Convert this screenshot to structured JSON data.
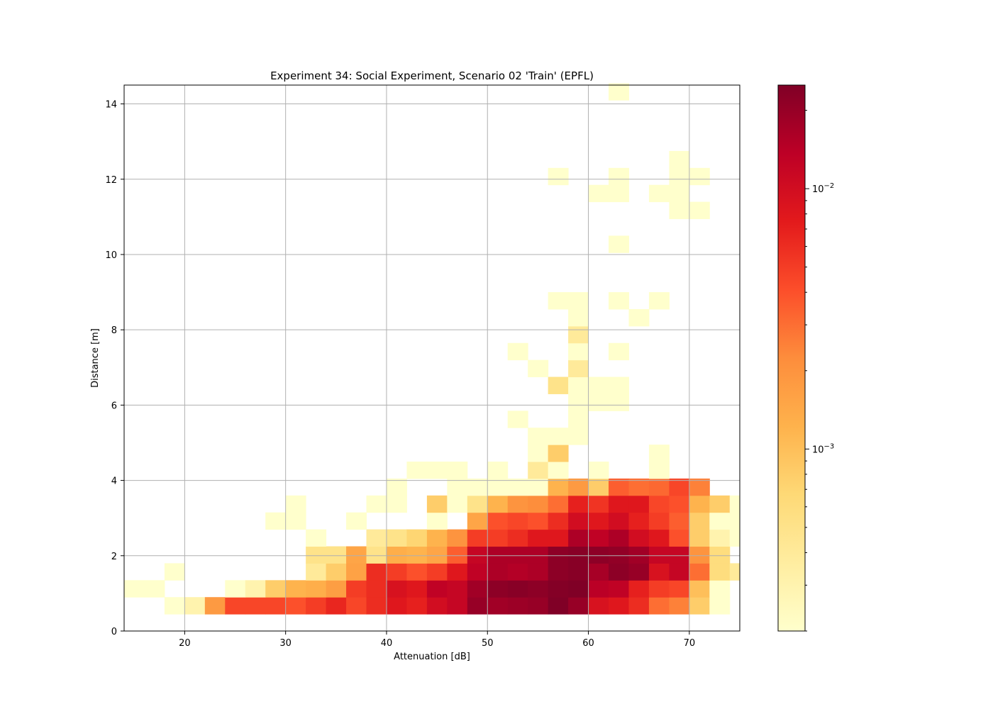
{
  "chart_data": {
    "type": "heatmap",
    "title": "Experiment 34: Social Experiment, Scenario 02 'Train' (EPFL)",
    "xlabel": "Attenuation [dB]",
    "ylabel": "Distance [m]",
    "xlim": [
      14,
      75
    ],
    "ylim": [
      0,
      14.5
    ],
    "x_ticks": [
      20,
      30,
      40,
      50,
      60,
      70
    ],
    "y_ticks": [
      0,
      2,
      4,
      6,
      8,
      10,
      12,
      14
    ],
    "grid": true,
    "colormap": "YlOrRd",
    "color_scale": "log",
    "color_range": [
      0.0002,
      0.025
    ],
    "colorbar_ticks": [
      {
        "value": 0.01,
        "label": "10−2"
      },
      {
        "value": 0.001,
        "label": "10−3"
      }
    ],
    "bin_size": {
      "x": 2,
      "y": 0.45
    },
    "cells": [
      [
        14,
        0.9,
        0.0002
      ],
      [
        16,
        0.9,
        0.0002
      ],
      [
        18,
        1.35,
        0.0002
      ],
      [
        18,
        0.45,
        0.0002
      ],
      [
        20,
        0.45,
        0.0003
      ],
      [
        22,
        0.45,
        0.0018
      ],
      [
        24,
        0.45,
        0.0045
      ],
      [
        26,
        0.45,
        0.0045
      ],
      [
        28,
        0.45,
        0.0045
      ],
      [
        30,
        0.45,
        0.004
      ],
      [
        32,
        0.45,
        0.005
      ],
      [
        34,
        0.45,
        0.0065
      ],
      [
        36,
        0.45,
        0.0045
      ],
      [
        38,
        0.45,
        0.006
      ],
      [
        40,
        0.45,
        0.008
      ],
      [
        42,
        0.45,
        0.007
      ],
      [
        44,
        0.45,
        0.01
      ],
      [
        46,
        0.45,
        0.012
      ],
      [
        48,
        0.45,
        0.02
      ],
      [
        50,
        0.45,
        0.018
      ],
      [
        52,
        0.45,
        0.019
      ],
      [
        54,
        0.45,
        0.02
      ],
      [
        56,
        0.45,
        0.025
      ],
      [
        58,
        0.45,
        0.02
      ],
      [
        60,
        0.45,
        0.009
      ],
      [
        62,
        0.45,
        0.008
      ],
      [
        64,
        0.45,
        0.006
      ],
      [
        66,
        0.45,
        0.003
      ],
      [
        68,
        0.45,
        0.0025
      ],
      [
        70,
        0.45,
        0.0008
      ],
      [
        72,
        0.45,
        0.0002
      ],
      [
        24,
        0.9,
        0.0002
      ],
      [
        26,
        0.9,
        0.0003
      ],
      [
        28,
        0.9,
        0.0008
      ],
      [
        30,
        0.9,
        0.0012
      ],
      [
        32,
        0.9,
        0.0013
      ],
      [
        34,
        0.9,
        0.0017
      ],
      [
        36,
        0.9,
        0.005
      ],
      [
        38,
        0.9,
        0.006
      ],
      [
        40,
        0.9,
        0.009
      ],
      [
        42,
        0.9,
        0.008
      ],
      [
        44,
        0.9,
        0.013
      ],
      [
        46,
        0.9,
        0.012
      ],
      [
        48,
        0.9,
        0.018
      ],
      [
        50,
        0.9,
        0.022
      ],
      [
        52,
        0.9,
        0.023
      ],
      [
        54,
        0.9,
        0.022
      ],
      [
        56,
        0.9,
        0.024
      ],
      [
        58,
        0.9,
        0.025
      ],
      [
        60,
        0.9,
        0.014
      ],
      [
        62,
        0.9,
        0.013
      ],
      [
        64,
        0.9,
        0.007
      ],
      [
        66,
        0.9,
        0.005
      ],
      [
        68,
        0.9,
        0.0045
      ],
      [
        70,
        0.9,
        0.001
      ],
      [
        72,
        0.9,
        0.0002
      ],
      [
        32,
        1.35,
        0.0004
      ],
      [
        34,
        1.35,
        0.0008
      ],
      [
        36,
        1.35,
        0.0016
      ],
      [
        38,
        1.35,
        0.006
      ],
      [
        40,
        1.35,
        0.005
      ],
      [
        42,
        1.35,
        0.004
      ],
      [
        44,
        1.35,
        0.005
      ],
      [
        46,
        1.35,
        0.008
      ],
      [
        48,
        1.35,
        0.013
      ],
      [
        50,
        1.35,
        0.016
      ],
      [
        52,
        1.35,
        0.015
      ],
      [
        54,
        1.35,
        0.016
      ],
      [
        56,
        1.35,
        0.022
      ],
      [
        58,
        1.35,
        0.023
      ],
      [
        60,
        1.35,
        0.017
      ],
      [
        62,
        1.35,
        0.022
      ],
      [
        64,
        1.35,
        0.02
      ],
      [
        66,
        1.35,
        0.009
      ],
      [
        68,
        1.35,
        0.012
      ],
      [
        70,
        1.35,
        0.003
      ],
      [
        72,
        1.35,
        0.0006
      ],
      [
        74,
        1.35,
        0.0004
      ],
      [
        32,
        1.8,
        0.0005
      ],
      [
        34,
        1.8,
        0.0005
      ],
      [
        36,
        1.8,
        0.0015
      ],
      [
        38,
        1.8,
        0.0005
      ],
      [
        40,
        1.8,
        0.0013
      ],
      [
        42,
        1.8,
        0.0012
      ],
      [
        44,
        1.8,
        0.0015
      ],
      [
        46,
        1.8,
        0.0035
      ],
      [
        48,
        1.8,
        0.012
      ],
      [
        50,
        1.8,
        0.016
      ],
      [
        52,
        1.8,
        0.016
      ],
      [
        54,
        1.8,
        0.016
      ],
      [
        56,
        1.8,
        0.022
      ],
      [
        58,
        1.8,
        0.023
      ],
      [
        60,
        1.8,
        0.022
      ],
      [
        62,
        1.8,
        0.021
      ],
      [
        64,
        1.8,
        0.018
      ],
      [
        66,
        1.8,
        0.012
      ],
      [
        68,
        1.8,
        0.012
      ],
      [
        70,
        1.8,
        0.002
      ],
      [
        72,
        1.8,
        0.0006
      ],
      [
        32,
        2.25,
        0.0002
      ],
      [
        38,
        2.25,
        0.0004
      ],
      [
        40,
        2.25,
        0.0005
      ],
      [
        42,
        2.25,
        0.0007
      ],
      [
        44,
        2.25,
        0.0012
      ],
      [
        46,
        2.25,
        0.002
      ],
      [
        48,
        2.25,
        0.005
      ],
      [
        50,
        2.25,
        0.005
      ],
      [
        52,
        2.25,
        0.006
      ],
      [
        54,
        2.25,
        0.008
      ],
      [
        56,
        2.25,
        0.008
      ],
      [
        58,
        2.25,
        0.016
      ],
      [
        60,
        2.25,
        0.013
      ],
      [
        62,
        2.25,
        0.016
      ],
      [
        64,
        2.25,
        0.01
      ],
      [
        66,
        2.25,
        0.008
      ],
      [
        68,
        2.25,
        0.004
      ],
      [
        70,
        2.25,
        0.0008
      ],
      [
        72,
        2.25,
        0.0003
      ],
      [
        74,
        2.25,
        0.0002
      ],
      [
        28,
        2.7,
        0.0002
      ],
      [
        30,
        2.7,
        0.0002
      ],
      [
        36,
        2.7,
        0.0002
      ],
      [
        44,
        2.7,
        0.0002
      ],
      [
        48,
        2.7,
        0.0015
      ],
      [
        50,
        2.7,
        0.004
      ],
      [
        52,
        2.7,
        0.0045
      ],
      [
        54,
        2.7,
        0.004
      ],
      [
        56,
        2.7,
        0.006
      ],
      [
        58,
        2.7,
        0.01
      ],
      [
        60,
        2.7,
        0.008
      ],
      [
        62,
        2.7,
        0.01
      ],
      [
        64,
        2.7,
        0.007
      ],
      [
        66,
        2.7,
        0.005
      ],
      [
        68,
        2.7,
        0.0035
      ],
      [
        70,
        2.7,
        0.0008
      ],
      [
        72,
        2.7,
        0.0002
      ],
      [
        74,
        2.7,
        0.0002
      ],
      [
        30,
        3.15,
        0.0002
      ],
      [
        38,
        3.15,
        0.0002
      ],
      [
        40,
        3.15,
        0.0002
      ],
      [
        44,
        3.15,
        0.0008
      ],
      [
        46,
        3.15,
        0.0002
      ],
      [
        48,
        3.15,
        0.0005
      ],
      [
        50,
        3.15,
        0.0012
      ],
      [
        52,
        3.15,
        0.002
      ],
      [
        54,
        3.15,
        0.0022
      ],
      [
        56,
        3.15,
        0.003
      ],
      [
        58,
        3.15,
        0.007
      ],
      [
        60,
        3.15,
        0.0055
      ],
      [
        62,
        3.15,
        0.008
      ],
      [
        64,
        3.15,
        0.008
      ],
      [
        66,
        3.15,
        0.0045
      ],
      [
        68,
        3.15,
        0.004
      ],
      [
        70,
        3.15,
        0.0012
      ],
      [
        72,
        3.15,
        0.0008
      ],
      [
        74,
        3.15,
        0.0002
      ],
      [
        40,
        3.6,
        0.0002
      ],
      [
        46,
        3.6,
        0.0002
      ],
      [
        48,
        3.6,
        0.0002
      ],
      [
        50,
        3.6,
        0.0002
      ],
      [
        52,
        3.6,
        0.0002
      ],
      [
        54,
        3.6,
        0.0002
      ],
      [
        56,
        3.6,
        0.0012
      ],
      [
        58,
        3.6,
        0.0018
      ],
      [
        60,
        3.6,
        0.0008
      ],
      [
        62,
        3.6,
        0.0035
      ],
      [
        64,
        3.6,
        0.003
      ],
      [
        66,
        3.6,
        0.0032
      ],
      [
        68,
        3.6,
        0.0045
      ],
      [
        70,
        3.6,
        0.0025
      ],
      [
        42,
        4.05,
        0.0002
      ],
      [
        44,
        4.05,
        0.0002
      ],
      [
        46,
        4.05,
        0.0002
      ],
      [
        50,
        4.05,
        0.0002
      ],
      [
        54,
        4.05,
        0.0004
      ],
      [
        56,
        4.05,
        0.0002
      ],
      [
        60,
        4.05,
        0.0002
      ],
      [
        66,
        4.05,
        0.0002
      ],
      [
        54,
        4.5,
        0.0002
      ],
      [
        56,
        4.5,
        0.0008
      ],
      [
        66,
        4.5,
        0.0002
      ],
      [
        54,
        4.95,
        0.0002
      ],
      [
        56,
        4.95,
        0.0002
      ],
      [
        58,
        4.95,
        0.0002
      ],
      [
        52,
        5.4,
        0.0002
      ],
      [
        58,
        5.4,
        0.0002
      ],
      [
        58,
        5.85,
        0.0002
      ],
      [
        60,
        5.85,
        0.0002
      ],
      [
        62,
        5.85,
        0.0002
      ],
      [
        56,
        6.3,
        0.0005
      ],
      [
        58,
        6.3,
        0.0002
      ],
      [
        60,
        6.3,
        0.0002
      ],
      [
        62,
        6.3,
        0.0002
      ],
      [
        54,
        6.75,
        0.0002
      ],
      [
        58,
        6.75,
        0.0004
      ],
      [
        52,
        7.2,
        0.0002
      ],
      [
        58,
        7.2,
        0.0002
      ],
      [
        62,
        7.2,
        0.0002
      ],
      [
        58,
        7.65,
        0.0004
      ],
      [
        58,
        8.1,
        0.0002
      ],
      [
        64,
        8.1,
        0.0002
      ],
      [
        56,
        8.55,
        0.0002
      ],
      [
        58,
        8.55,
        0.0002
      ],
      [
        62,
        8.55,
        0.0002
      ],
      [
        66,
        8.55,
        0.0002
      ],
      [
        62,
        10.05,
        0.0002
      ],
      [
        60,
        11.4,
        0.0002
      ],
      [
        62,
        11.4,
        0.0002
      ],
      [
        66,
        11.4,
        0.0002
      ],
      [
        68,
        11.4,
        0.0002
      ],
      [
        68,
        10.95,
        0.0002
      ],
      [
        70,
        10.95,
        0.0002
      ],
      [
        56,
        11.85,
        0.0002
      ],
      [
        62,
        11.85,
        0.0002
      ],
      [
        68,
        11.85,
        0.0002
      ],
      [
        70,
        11.85,
        0.0002
      ],
      [
        68,
        12.3,
        0.0002
      ],
      [
        62,
        14.1,
        0.0002
      ]
    ]
  }
}
